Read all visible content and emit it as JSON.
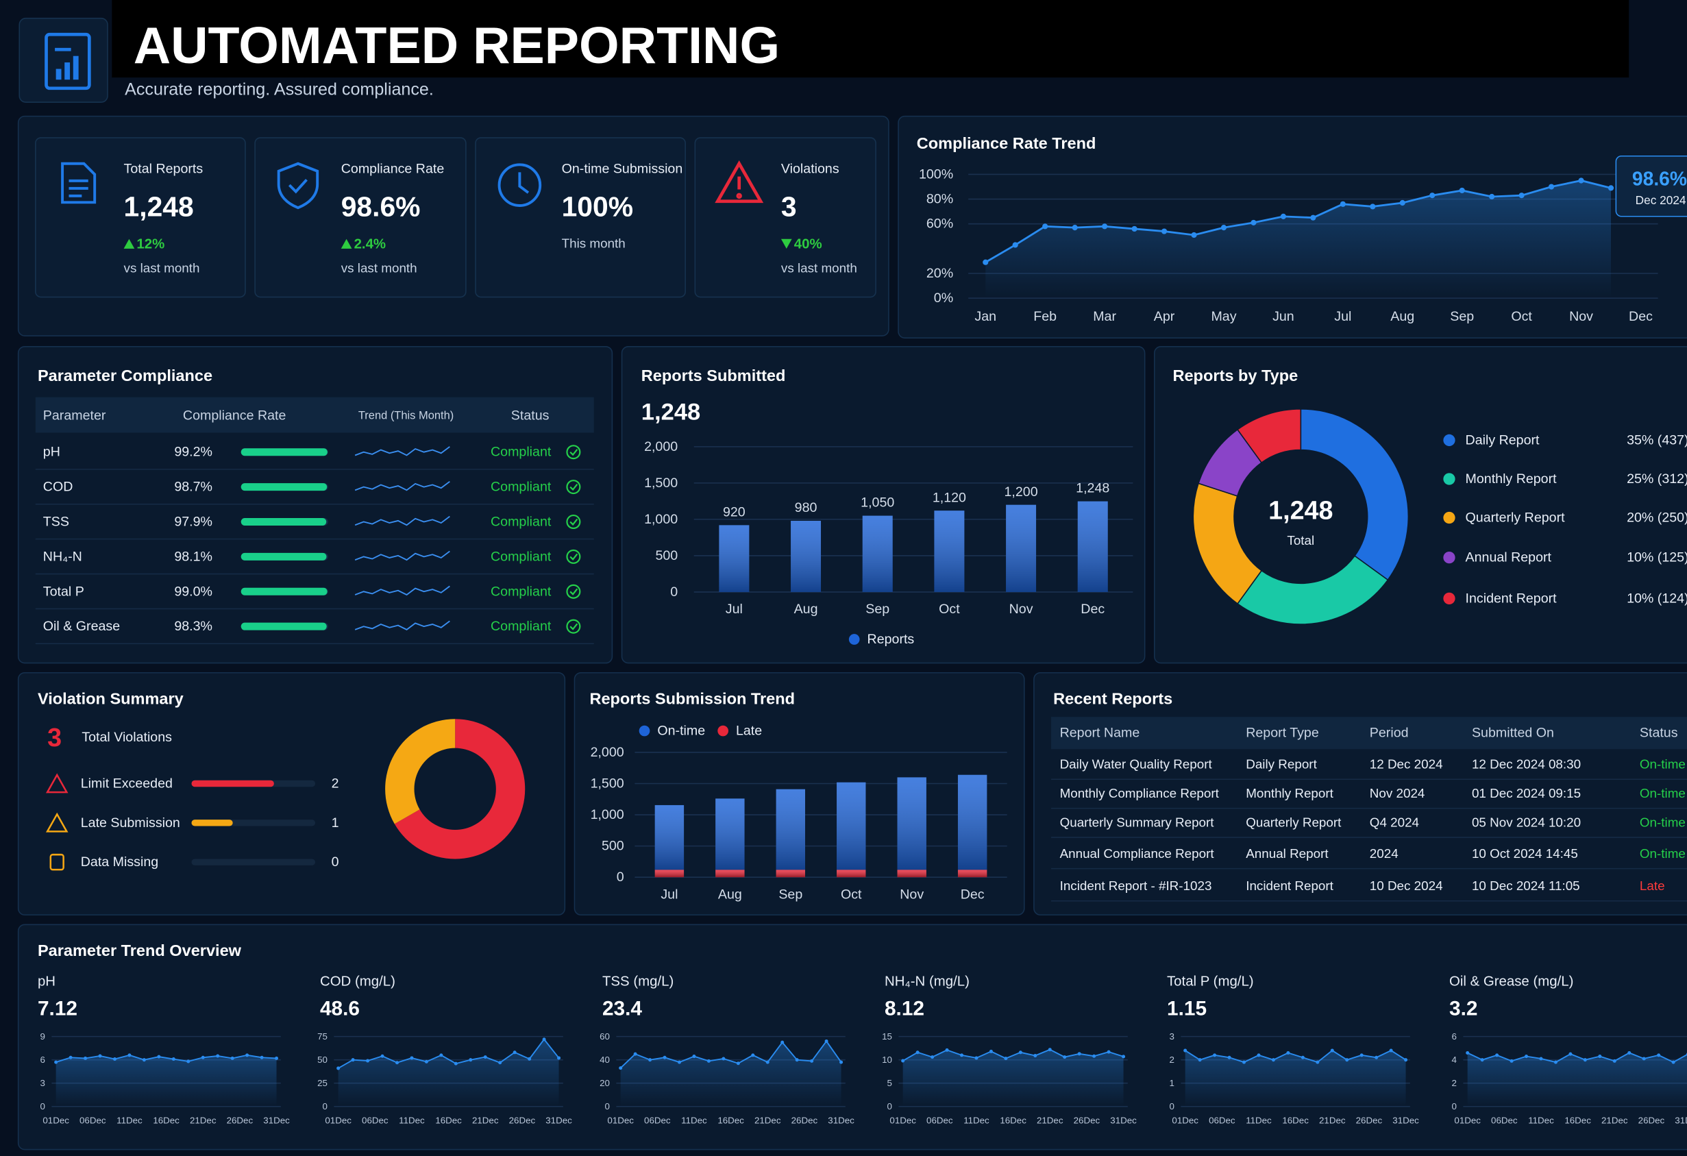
{
  "header": {
    "title": "AUTOMATED REPORTING",
    "subtitle": "Accurate reporting. Assured compliance."
  },
  "kpis": [
    {
      "label": "Total Reports",
      "value": "1,248",
      "change": "12%",
      "direction": "up",
      "note": "vs last month"
    },
    {
      "label": "Compliance Rate",
      "value": "98.6%",
      "change": "2.4%",
      "direction": "up",
      "note": "vs last month"
    },
    {
      "label": "On-time Submission",
      "value": "100%",
      "note": "This month"
    },
    {
      "label": "Violations",
      "value": "3",
      "change": "40%",
      "direction": "down",
      "note": "vs last month"
    }
  ],
  "parameter_compliance": {
    "title": "Parameter Compliance",
    "headers": [
      "Parameter",
      "Compliance Rate",
      "Trend (This Month)",
      "Status"
    ],
    "rows": [
      {
        "parameter": "pH",
        "rate": 99.2,
        "rate_label": "99.2%",
        "status": "Compliant"
      },
      {
        "parameter": "COD",
        "rate": 98.7,
        "rate_label": "98.7%",
        "status": "Compliant"
      },
      {
        "parameter": "TSS",
        "rate": 97.9,
        "rate_label": "97.9%",
        "status": "Compliant"
      },
      {
        "parameter": "NH₄-N",
        "rate": 98.1,
        "rate_label": "98.1%",
        "status": "Compliant"
      },
      {
        "parameter": "Total P",
        "rate": 99.0,
        "rate_label": "99.0%",
        "status": "Compliant"
      },
      {
        "parameter": "Oil & Grease",
        "rate": 98.3,
        "rate_label": "98.3%",
        "status": "Compliant"
      }
    ]
  },
  "violation_summary": {
    "title": "Violation Summary",
    "total": 3,
    "total_label": "Total Violations",
    "items": [
      {
        "label": "Limit Exceeded",
        "count": 2,
        "color": "#e8283a"
      },
      {
        "label": "Late Submission",
        "count": 1,
        "color": "#f5a814"
      },
      {
        "label": "Data Missing",
        "count": 0,
        "color": "#f5a614"
      }
    ]
  },
  "recent_reports": {
    "title": "Recent Reports",
    "headers": [
      "Report Name",
      "Report Type",
      "Period",
      "Submitted On",
      "Status"
    ],
    "rows": [
      [
        "Daily Water Quality Report",
        "Daily Report",
        "12 Dec 2024",
        "12 Dec 2024 08:30",
        "On-time"
      ],
      [
        "Monthly Compliance Report",
        "Monthly Report",
        "Nov 2024",
        "01 Dec 2024 09:15",
        "On-time"
      ],
      [
        "Quarterly Summary Report",
        "Quarterly Report",
        "Q4 2024",
        "05 Nov 2024 10:20",
        "On-time"
      ],
      [
        "Annual Compliance Report",
        "Annual Report",
        "2024",
        "10 Oct 2024 14:45",
        "On-time"
      ],
      [
        "Incident Report - #IR-1023",
        "Incident Report",
        "10 Dec 2024",
        "10 Dec 2024 11:05",
        "Late"
      ]
    ],
    "status_colors": [
      "#25d04a",
      "#25d04a",
      "#25d04a",
      "#25d04a",
      "#ff3b3b"
    ]
  },
  "parameter_trends": {
    "title": "Parameter Trend Overview"
  },
  "chart_data": [
    {
      "type": "line",
      "title": "Compliance Rate Trend",
      "color": "#2a8cf0",
      "x": [
        0,
        0.5,
        1,
        1.5,
        2,
        2.5,
        3,
        3.5,
        4,
        4.5,
        5,
        5.5,
        6,
        6.5,
        7,
        7.5,
        8,
        8.5,
        9,
        9.5,
        10,
        10.5
      ],
      "values": [
        29,
        43,
        58,
        57,
        58,
        56,
        54,
        51,
        57,
        61,
        66,
        65,
        76,
        74,
        77,
        83,
        87,
        82,
        83,
        90,
        95,
        89
      ],
      "xlim": [
        0,
        11
      ],
      "xticks": [
        {
          "value": 0,
          "label": "Jan"
        },
        {
          "value": 1,
          "label": "Feb"
        },
        {
          "value": 2,
          "label": "Mar"
        },
        {
          "value": 3,
          "label": "Apr"
        },
        {
          "value": 4,
          "label": "May"
        },
        {
          "value": 5,
          "label": "Jun"
        },
        {
          "value": 6,
          "label": "Jul"
        },
        {
          "value": 7,
          "label": "Aug"
        },
        {
          "value": 8,
          "label": "Sep"
        },
        {
          "value": 9,
          "label": "Oct"
        },
        {
          "value": 10,
          "label": "Nov"
        },
        {
          "value": 11,
          "label": "Dec"
        }
      ],
      "ylim": [
        0,
        100
      ],
      "yticks": [
        {
          "value": 0,
          "label": "0%"
        },
        {
          "value": 20,
          "label": "20%"
        },
        {
          "value": 60,
          "label": "60%"
        },
        {
          "value": 80,
          "label": "80%"
        },
        {
          "value": 100,
          "label": "100%"
        }
      ],
      "callout": {
        "value": "98.6%",
        "label": "Dec 2024"
      }
    },
    {
      "type": "bar",
      "title": "Reports Submitted",
      "total": "1,248",
      "categories": [
        "Jul",
        "Aug",
        "Sep",
        "Oct",
        "Nov",
        "Dec"
      ],
      "series": [
        {
          "name": "Reports",
          "color": "#1e64d8",
          "values": [
            920,
            980,
            1050,
            1120,
            1200,
            1248
          ],
          "value_labels": [
            "920",
            "980",
            "1,050",
            "1,120",
            "1,200",
            "1,248"
          ]
        }
      ],
      "ylim": [
        0,
        2000
      ],
      "yticks": [
        0,
        500,
        {
          "value": 1000,
          "label": "1,000"
        },
        {
          "value": 1500,
          "label": "1,500"
        },
        {
          "value": 2000,
          "label": "2,000"
        }
      ]
    },
    {
      "type": "pie",
      "title": "Reports by Type",
      "center_value": "1,248",
      "center_label": "Total",
      "categories": [
        "Daily Report",
        "Monthly Report",
        "Quarterly Report",
        "Annual Report",
        "Incident Report"
      ],
      "values": [
        35,
        25,
        20,
        10,
        10
      ],
      "value_labels": [
        "35% (437)",
        "25% (312)",
        "20% (250)",
        "10% (125)",
        "10% (124)"
      ],
      "colors": [
        "#1f6fe0",
        "#19c9a6",
        "#f5a614",
        "#8a44c8",
        "#e8283a"
      ]
    },
    {
      "type": "bar",
      "stacked": true,
      "title": "Reports Submission Trend",
      "categories": [
        "Jul",
        "Aug",
        "Sep",
        "Oct",
        "Nov",
        "Dec"
      ],
      "series": [
        {
          "name": "On-time",
          "color": "#1e64d8",
          "values": [
            1035,
            1140,
            1290,
            1400,
            1480,
            1520
          ]
        },
        {
          "name": "Late",
          "color": "#e8283a",
          "values": [
            120,
            120,
            120,
            120,
            120,
            120
          ]
        }
      ],
      "ylim": [
        0,
        2000
      ],
      "yticks": [
        0,
        500,
        {
          "value": 1000,
          "label": "1,000"
        },
        {
          "value": 1500,
          "label": "1,500"
        },
        {
          "value": 2000,
          "label": "2,000"
        }
      ]
    },
    {
      "type": "line",
      "title": "pH",
      "current": 7.12,
      "color": "#2a8cf0",
      "x": [
        1,
        3,
        5,
        7,
        9,
        11,
        13,
        15,
        17,
        19,
        21,
        23,
        25,
        27,
        29,
        31
      ],
      "values": [
        5.7,
        6.3,
        6.2,
        6.5,
        6.1,
        6.6,
        6.0,
        6.4,
        6.1,
        5.8,
        6.3,
        6.5,
        6.2,
        6.6,
        6.3,
        6.2
      ],
      "ylim": [
        0,
        9
      ],
      "yticks": [
        0,
        3,
        6,
        9
      ],
      "xlim": [
        1,
        31
      ],
      "xticks": [
        {
          "value": 1,
          "label": "01Dec"
        },
        {
          "value": 6,
          "label": "06Dec"
        },
        {
          "value": 11,
          "label": "11Dec"
        },
        {
          "value": 16,
          "label": "16Dec"
        },
        {
          "value": 21,
          "label": "21Dec"
        },
        {
          "value": 26,
          "label": "26Dec"
        },
        {
          "value": 31,
          "label": "31Dec"
        }
      ]
    },
    {
      "type": "line",
      "title": "COD (mg/L)",
      "current": 48.6,
      "color": "#2a8cf0",
      "x": [
        1,
        3,
        5,
        7,
        9,
        11,
        13,
        15,
        17,
        19,
        21,
        23,
        25,
        27,
        29,
        31
      ],
      "values": [
        41,
        50,
        49,
        54,
        47,
        52,
        48,
        55,
        46,
        50,
        53,
        47,
        58,
        51,
        72,
        52
      ],
      "ylim": [
        0,
        75
      ],
      "yticks": [
        0,
        25,
        50,
        75
      ],
      "xlim": [
        1,
        31
      ],
      "xticks": [
        {
          "value": 1,
          "label": "01Dec"
        },
        {
          "value": 6,
          "label": "06Dec"
        },
        {
          "value": 11,
          "label": "11Dec"
        },
        {
          "value": 16,
          "label": "16Dec"
        },
        {
          "value": 21,
          "label": "21Dec"
        },
        {
          "value": 26,
          "label": "26Dec"
        },
        {
          "value": 31,
          "label": "31Dec"
        }
      ]
    },
    {
      "type": "line",
      "title": "TSS (mg/L)",
      "current": 23.4,
      "color": "#2a8cf0",
      "x": [
        1,
        3,
        5,
        7,
        9,
        11,
        13,
        15,
        17,
        19,
        21,
        23,
        25,
        27,
        29,
        31
      ],
      "values": [
        33,
        45,
        40,
        42,
        38,
        43,
        39,
        41,
        37,
        44,
        38,
        55,
        40,
        39,
        56,
        38
      ],
      "ylim": [
        0,
        60
      ],
      "yticks": [
        0,
        20,
        40,
        60
      ],
      "xlim": [
        1,
        31
      ],
      "xticks": [
        {
          "value": 1,
          "label": "01Dec"
        },
        {
          "value": 6,
          "label": "06Dec"
        },
        {
          "value": 11,
          "label": "11Dec"
        },
        {
          "value": 16,
          "label": "16Dec"
        },
        {
          "value": 21,
          "label": "21Dec"
        },
        {
          "value": 26,
          "label": "26Dec"
        },
        {
          "value": 31,
          "label": "31Dec"
        }
      ]
    },
    {
      "type": "line",
      "title": "NH₄-N (mg/L)",
      "current": 8.12,
      "color": "#2a8cf0",
      "x": [
        1,
        3,
        5,
        7,
        9,
        11,
        13,
        15,
        17,
        19,
        21,
        23,
        25,
        27,
        29,
        31
      ],
      "values": [
        9.8,
        11.6,
        10.6,
        12.1,
        11.0,
        10.4,
        11.8,
        10.3,
        11.6,
        10.9,
        12.2,
        10.6,
        11.3,
        10.8,
        11.7,
        10.7
      ],
      "ylim": [
        0,
        15
      ],
      "yticks": [
        0,
        5,
        10,
        15
      ],
      "xlim": [
        1,
        31
      ],
      "xticks": [
        {
          "value": 1,
          "label": "01Dec"
        },
        {
          "value": 6,
          "label": "06Dec"
        },
        {
          "value": 11,
          "label": "11Dec"
        },
        {
          "value": 16,
          "label": "16Dec"
        },
        {
          "value": 21,
          "label": "21Dec"
        },
        {
          "value": 26,
          "label": "26Dec"
        },
        {
          "value": 31,
          "label": "31Dec"
        }
      ]
    },
    {
      "type": "line",
      "title": "Total P (mg/L)",
      "current": 1.15,
      "color": "#2a8cf0",
      "x": [
        1,
        3,
        5,
        7,
        9,
        11,
        13,
        15,
        17,
        19,
        21,
        23,
        25,
        27,
        29,
        31
      ],
      "values": [
        2.4,
        2.0,
        2.2,
        2.1,
        1.9,
        2.2,
        2.0,
        2.3,
        2.1,
        1.9,
        2.4,
        2.0,
        2.2,
        2.1,
        2.4,
        2.0
      ],
      "ylim": [
        0,
        3
      ],
      "yticks": [
        0,
        1,
        2,
        3
      ],
      "xlim": [
        1,
        31
      ],
      "xticks": [
        {
          "value": 1,
          "label": "01Dec"
        },
        {
          "value": 6,
          "label": "06Dec"
        },
        {
          "value": 11,
          "label": "11Dec"
        },
        {
          "value": 16,
          "label": "16Dec"
        },
        {
          "value": 21,
          "label": "21Dec"
        },
        {
          "value": 26,
          "label": "26Dec"
        },
        {
          "value": 31,
          "label": "31Dec"
        }
      ]
    },
    {
      "type": "line",
      "title": "Oil & Grease (mg/L)",
      "current": 3.2,
      "color": "#2a8cf0",
      "x": [
        1,
        3,
        5,
        7,
        9,
        11,
        13,
        15,
        17,
        19,
        21,
        23,
        25,
        27,
        29,
        31
      ],
      "values": [
        4.6,
        4.0,
        4.4,
        3.9,
        4.3,
        4.1,
        3.8,
        4.5,
        4.0,
        4.3,
        3.9,
        4.6,
        4.1,
        4.4,
        3.8,
        4.5
      ],
      "ylim": [
        0,
        6
      ],
      "yticks": [
        0,
        2,
        4,
        6
      ],
      "xlim": [
        1,
        31
      ],
      "xticks": [
        {
          "value": 1,
          "label": "01Dec"
        },
        {
          "value": 6,
          "label": "06Dec"
        },
        {
          "value": 11,
          "label": "11Dec"
        },
        {
          "value": 16,
          "label": "16Dec"
        },
        {
          "value": 21,
          "label": "21Dec"
        },
        {
          "value": 26,
          "label": "26Dec"
        },
        {
          "value": 31,
          "label": "31Dec"
        }
      ]
    }
  ]
}
